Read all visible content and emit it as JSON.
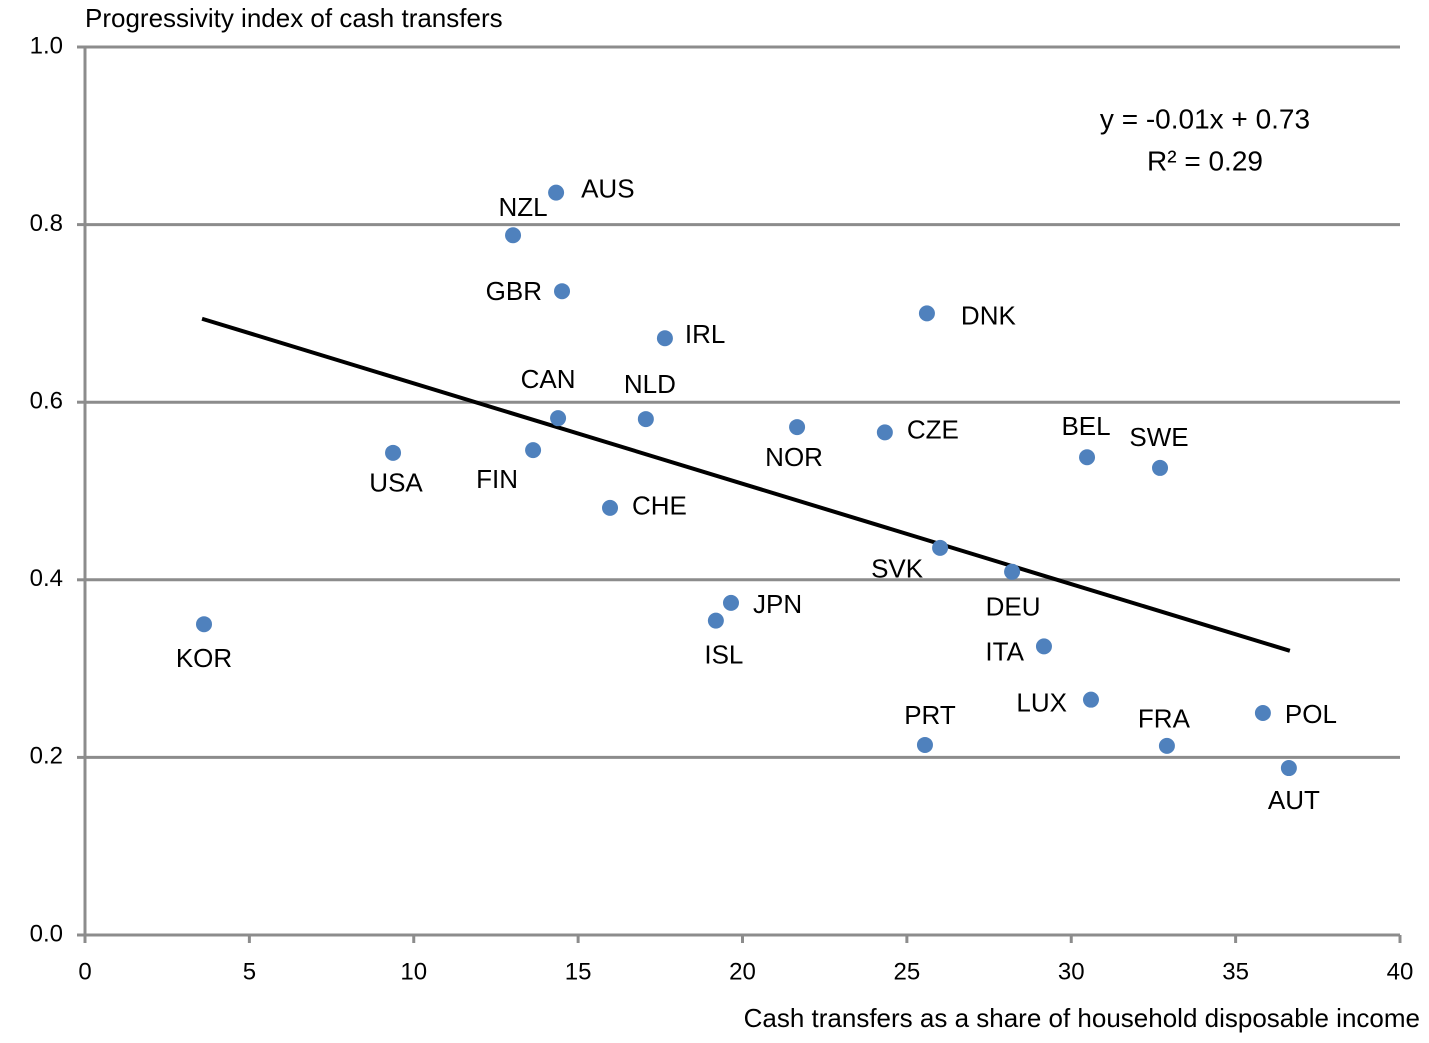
{
  "chart_data": {
    "type": "scatter",
    "y_axis_title": "Progressivity index of cash transfers",
    "x_axis_title": "Cash transfers as a share of household disposable income",
    "annotations": [
      "y = -0.01x + 0.73",
      "R² = 0.29"
    ],
    "xlim": [
      0,
      40
    ],
    "xticks": [
      0,
      5,
      10,
      15,
      20,
      25,
      30,
      35,
      40
    ],
    "ylim": [
      0,
      1.0
    ],
    "yticks": [
      {
        "value": 0,
        "label": "0.0"
      },
      0.2,
      0.4,
      0.6,
      {
        "value": 0.8,
        "label": "0.8"
      },
      {
        "value": 1.0,
        "label": "1.0"
      }
    ],
    "grid": true,
    "color": "#4f81bd",
    "labels": [
      "KOR",
      "USA",
      "FIN",
      "CAN",
      "NZL",
      "AUS",
      "GBR",
      "CHE",
      "NLD",
      "IRL",
      "ISL",
      "JPN",
      "NOR",
      "CZE",
      "PRT",
      "DNK",
      "SVK",
      "DEU",
      "ITA",
      "BEL",
      "LUX",
      "SWE",
      "FRA",
      "POL",
      "AUT"
    ],
    "x": [
      3.62,
      9.37,
      13.63,
      14.39,
      13.02,
      14.33,
      14.51,
      15.97,
      17.06,
      17.64,
      19.19,
      19.65,
      21.66,
      24.33,
      25.55,
      25.61,
      26.01,
      28.2,
      29.17,
      30.48,
      30.6,
      32.7,
      32.91,
      35.83,
      36.62
    ],
    "values": [
      0.35,
      0.543,
      0.546,
      0.582,
      0.788,
      0.836,
      0.725,
      0.481,
      0.581,
      0.672,
      0.354,
      0.374,
      0.572,
      0.566,
      0.214,
      0.7,
      0.436,
      0.409,
      0.325,
      0.538,
      0.265,
      0.526,
      0.213,
      0.25,
      0.188
    ],
    "trendline": {
      "color": "#000000",
      "x": [
        3.56,
        36.65
      ],
      "values": [
        0.694,
        0.32
      ]
    }
  }
}
